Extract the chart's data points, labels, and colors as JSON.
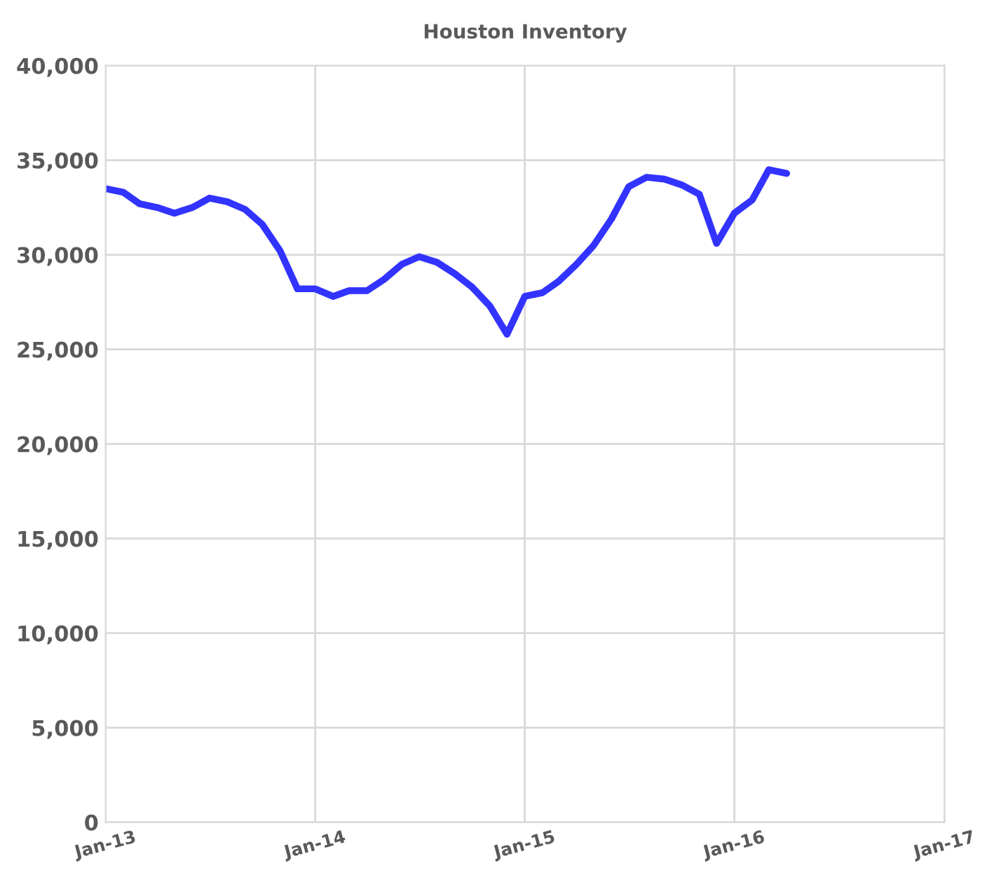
{
  "chart_data": {
    "type": "line",
    "title": "Houston Inventory",
    "x": [
      "2013-01",
      "2013-02",
      "2013-03",
      "2013-04",
      "2013-05",
      "2013-06",
      "2013-07",
      "2013-08",
      "2013-09",
      "2013-10",
      "2013-11",
      "2013-12",
      "2014-01",
      "2014-02",
      "2014-03",
      "2014-04",
      "2014-05",
      "2014-06",
      "2014-07",
      "2014-08",
      "2014-09",
      "2014-10",
      "2014-11",
      "2014-12",
      "2015-01",
      "2015-02",
      "2015-03",
      "2015-04",
      "2015-05",
      "2015-06",
      "2015-07",
      "2015-08",
      "2015-09",
      "2015-10",
      "2015-11",
      "2015-12",
      "2016-01",
      "2016-02",
      "2016-03",
      "2016-04"
    ],
    "series": [
      {
        "color": "#3333ff",
        "values": [
          33500,
          33300,
          32700,
          32500,
          32200,
          32500,
          33000,
          32800,
          32400,
          31600,
          30200,
          28200,
          28200,
          27800,
          28100,
          28100,
          28700,
          29500,
          29900,
          29600,
          29000,
          28300,
          27300,
          25800,
          27800,
          28000,
          28600,
          29500,
          30500,
          31900,
          33600,
          34100,
          34000,
          33700,
          33200,
          30600,
          32200,
          32900,
          34500,
          34300
        ]
      }
    ],
    "xlim": [
      "2013-01",
      "2017-01"
    ],
    "xticks": [
      {
        "value": "2013-01",
        "label": "Jan-13"
      },
      {
        "value": "2014-01",
        "label": "Jan-14"
      },
      {
        "value": "2015-01",
        "label": "Jan-15"
      },
      {
        "value": "2016-01",
        "label": "Jan-16"
      },
      {
        "value": "2017-01",
        "label": "Jan-17"
      }
    ],
    "ylim": [
      0,
      40000
    ],
    "yticks": [
      {
        "value": 0,
        "label": "0"
      },
      {
        "value": 5000,
        "label": "5,000"
      },
      {
        "value": 10000,
        "label": "10,000"
      },
      {
        "value": 15000,
        "label": "15,000"
      },
      {
        "value": 20000,
        "label": "20,000"
      },
      {
        "value": 25000,
        "label": "25,000"
      },
      {
        "value": 30000,
        "label": "30,000"
      },
      {
        "value": 35000,
        "label": "35,000"
      },
      {
        "value": 40000,
        "label": "40,000"
      }
    ],
    "grid": true,
    "marker": "none",
    "line_style": "solid"
  }
}
